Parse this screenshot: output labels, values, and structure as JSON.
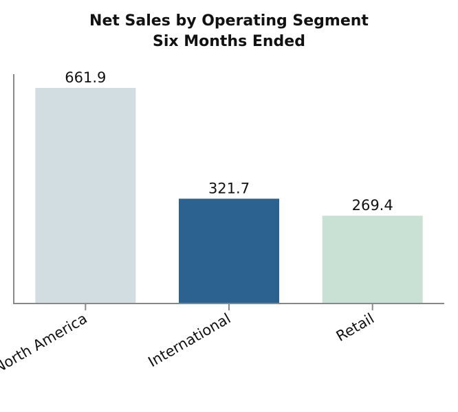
{
  "chart_data": {
    "type": "bar",
    "title": "Net Sales by Operating Segment",
    "subtitle": "Six Months Ended",
    "xlabel": "",
    "ylabel": "",
    "categories": [
      "North America",
      "International",
      "Retail"
    ],
    "values": [
      661.9,
      321.7,
      269.4
    ],
    "data_labels": [
      "661.9",
      "321.7",
      "269.4"
    ],
    "colors": [
      "#d1dde1",
      "#2b628f",
      "#c9e0d5"
    ],
    "axis_color": "#888888",
    "ylim": [
      0,
      704
    ],
    "grid": false,
    "legend": "none"
  }
}
